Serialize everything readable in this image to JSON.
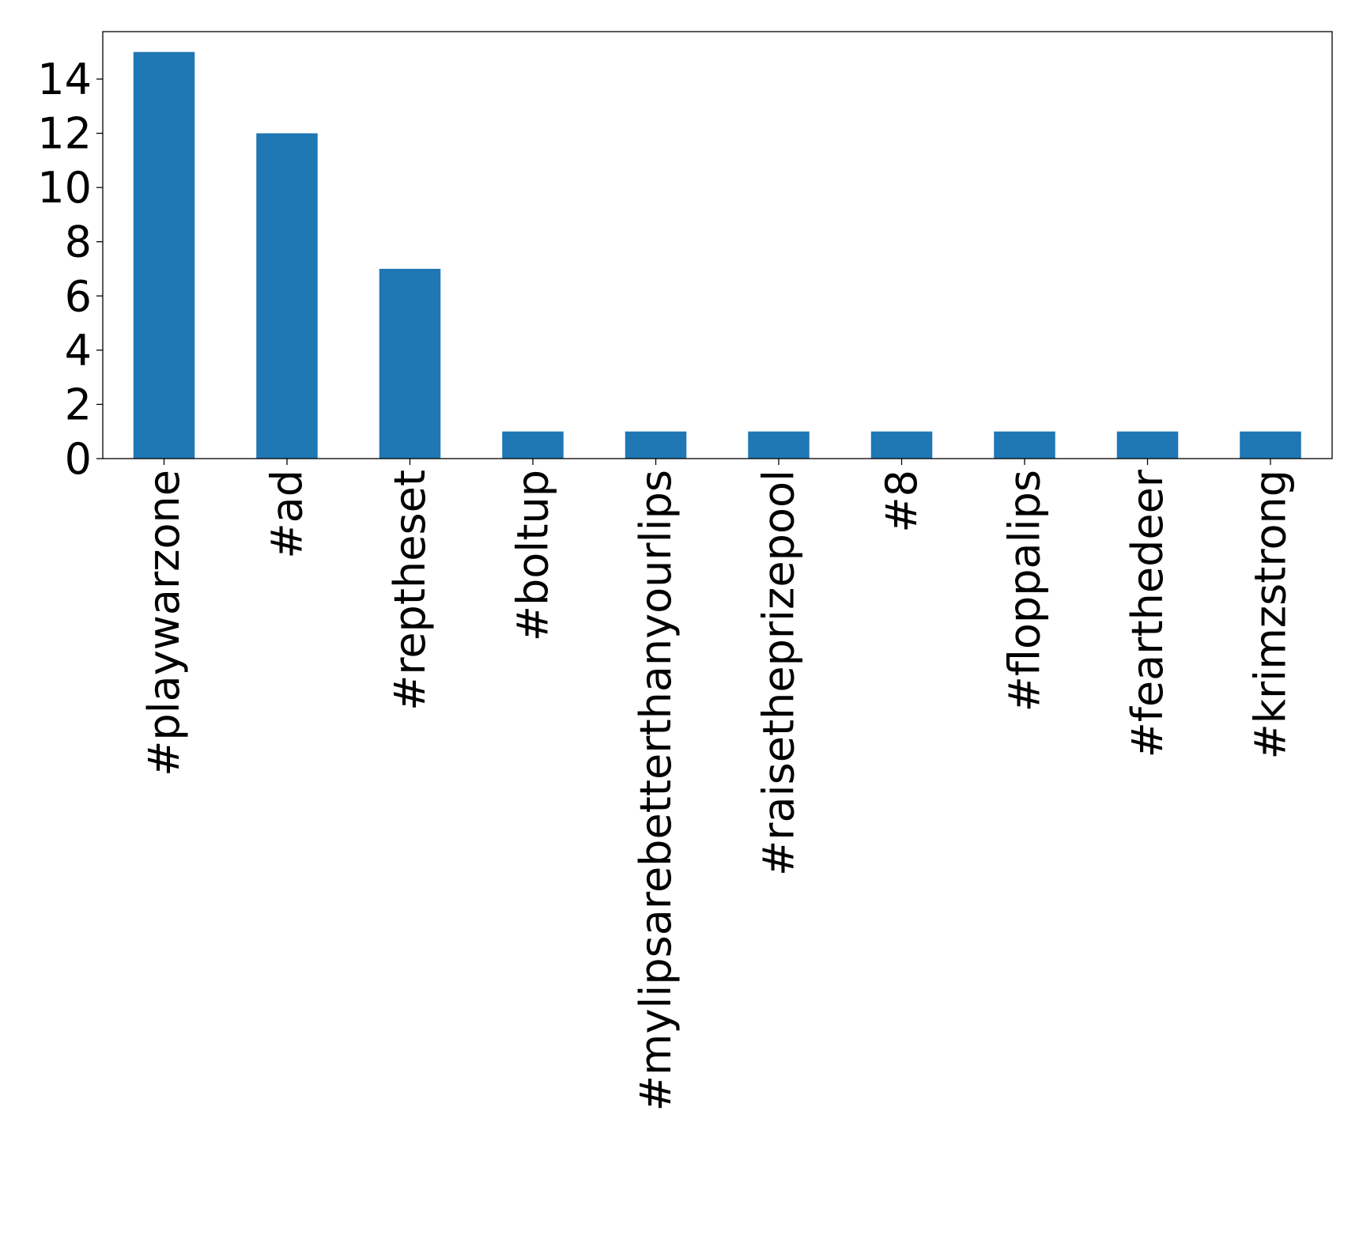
{
  "chart_data": {
    "type": "bar",
    "title": "",
    "xlabel": "",
    "ylabel": "",
    "categories": [
      "#playwarzone",
      "#ad",
      "#reptheset",
      "#boltup",
      "#mylipsarebetterthanyourlips",
      "#raisetheprizepool",
      "#8",
      "#floppalips",
      "#fearthedeer",
      "#krimzstrong"
    ],
    "values": [
      15,
      12,
      7,
      1,
      1,
      1,
      1,
      1,
      1,
      1
    ],
    "ylim": [
      0,
      15.75
    ],
    "yticks": [
      0,
      2,
      4,
      6,
      8,
      10,
      12,
      14
    ],
    "ytick_labels": [
      "0",
      "2",
      "4",
      "6",
      "8",
      "10",
      "12",
      "14"
    ],
    "grid": false,
    "legend": "none",
    "bar_color": "#1f77b4"
  }
}
